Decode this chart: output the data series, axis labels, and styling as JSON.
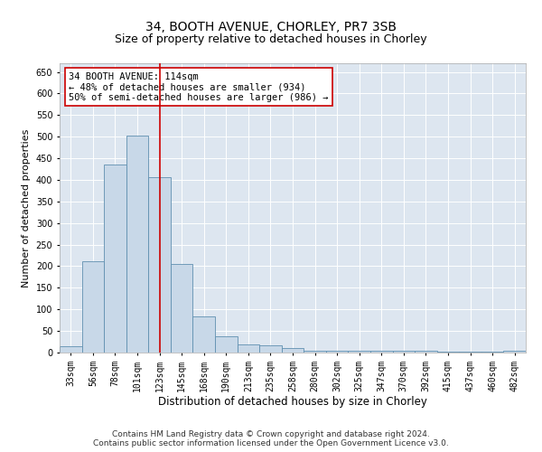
{
  "title1": "34, BOOTH AVENUE, CHORLEY, PR7 3SB",
  "title2": "Size of property relative to detached houses in Chorley",
  "xlabel": "Distribution of detached houses by size in Chorley",
  "ylabel": "Number of detached properties",
  "categories": [
    "33sqm",
    "56sqm",
    "78sqm",
    "101sqm",
    "123sqm",
    "145sqm",
    "168sqm",
    "190sqm",
    "213sqm",
    "235sqm",
    "258sqm",
    "280sqm",
    "302sqm",
    "325sqm",
    "347sqm",
    "370sqm",
    "392sqm",
    "415sqm",
    "437sqm",
    "460sqm",
    "482sqm"
  ],
  "values": [
    15,
    212,
    435,
    503,
    407,
    206,
    83,
    38,
    18,
    17,
    10,
    5,
    5,
    5,
    5,
    5,
    5,
    2,
    2,
    2,
    4
  ],
  "bar_color": "#c8d8e8",
  "bar_edge_color": "#6090b0",
  "vline_x": 4,
  "vline_color": "#cc0000",
  "annotation_line1": "34 BOOTH AVENUE: 114sqm",
  "annotation_line2": "← 48% of detached houses are smaller (934)",
  "annotation_line3": "50% of semi-detached houses are larger (986) →",
  "annotation_box_color": "#ffffff",
  "annotation_box_edge": "#cc0000",
  "ylim": [
    0,
    670
  ],
  "yticks": [
    0,
    50,
    100,
    150,
    200,
    250,
    300,
    350,
    400,
    450,
    500,
    550,
    600,
    650
  ],
  "background_color": "#dde6f0",
  "grid_color": "#ffffff",
  "footer": "Contains HM Land Registry data © Crown copyright and database right 2024.\nContains public sector information licensed under the Open Government Licence v3.0.",
  "title1_fontsize": 10,
  "title2_fontsize": 9,
  "xlabel_fontsize": 8.5,
  "ylabel_fontsize": 8,
  "tick_fontsize": 7,
  "annotation_fontsize": 7.5,
  "footer_fontsize": 6.5
}
